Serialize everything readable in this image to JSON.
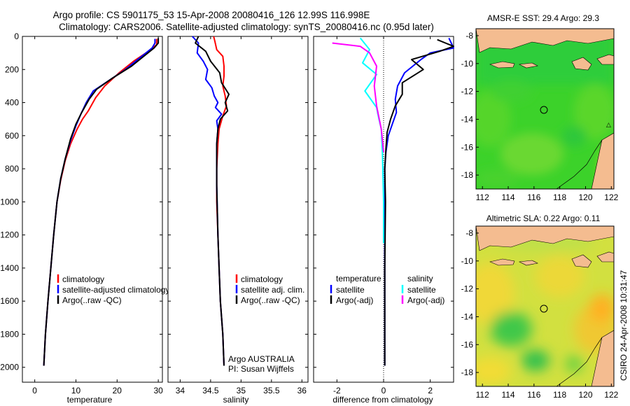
{
  "title_line1": "Argo profile: CS 5901175_53 15-Apr-2008 20080416_126 12.99S 116.998E",
  "title_line2": "Climatology: CARS2006. Satellite-adjusted climatology: synTS_20080416.nc (0.95d later)",
  "side_note": "CSIRO 24-Apr-2008 10:31:47",
  "colors": {
    "climatology": "#ff0000",
    "satellite": "#0000ff",
    "argo": "#000000",
    "salinity_sat": "#00ffff",
    "salinity_argo": "#ff00ff",
    "land": "#f4bc90"
  },
  "depth_ticks": [
    "0",
    "200",
    "400",
    "600",
    "800",
    "1000",
    "1200",
    "1400",
    "1600",
    "1800",
    "2000"
  ],
  "chart_data": [
    {
      "type": "line",
      "id": "temperature",
      "xlabel": "temperature",
      "xlim": [
        -3,
        31
      ],
      "ylim": [
        2090,
        0
      ],
      "xticks": [
        0,
        10,
        20,
        30
      ],
      "xtick_labels": [
        "0",
        "10",
        "20",
        "30"
      ],
      "legend": [
        "climatology",
        "satellite-adjusted climatology",
        "Argo(..raw -QC)"
      ],
      "series": [
        {
          "name": "climatology",
          "color": "#ff0000",
          "x": [
            29.6,
            29.6,
            28.2,
            24,
            20.5,
            17,
            14.8,
            13,
            11.6,
            10.3,
            8.7,
            7.4,
            6.3,
            5.4,
            4.6,
            3.9,
            3.2,
            2.6,
            2.2
          ],
          "y": [
            15,
            50,
            80,
            150,
            220,
            300,
            370,
            450,
            500,
            560,
            650,
            750,
            870,
            1000,
            1200,
            1400,
            1600,
            1800,
            1990
          ]
        },
        {
          "name": "satellite-adjusted climatology",
          "color": "#0000ff",
          "x": [
            29.2,
            29.2,
            28.5,
            22,
            17.8,
            14.2,
            12.5,
            11.2,
            10,
            8.7,
            7.4,
            6.3,
            5.4,
            4.6,
            3.9,
            3.2,
            2.6,
            2.2
          ],
          "y": [
            15,
            40,
            70,
            200,
            270,
            330,
            400,
            470,
            540,
            630,
            740,
            860,
            1000,
            1200,
            1400,
            1600,
            1800,
            1990
          ]
        },
        {
          "name": "Argo(..raw -QC)",
          "color": "#000000",
          "x": [
            30,
            30,
            29,
            23.5,
            19,
            15,
            13.2,
            11.4,
            10,
            8.7,
            7.4,
            6.3,
            5.4,
            4.6,
            3.9,
            3.2,
            2.6,
            2.2
          ],
          "y": [
            10,
            40,
            70,
            180,
            250,
            320,
            380,
            460,
            530,
            620,
            740,
            860,
            1000,
            1200,
            1400,
            1600,
            1800,
            1990
          ]
        }
      ]
    },
    {
      "type": "line",
      "id": "salinity",
      "xlabel": "salinity",
      "xlim": [
        33.8,
        36.1
      ],
      "ylim": [
        2090,
        0
      ],
      "xticks": [
        34,
        34.5,
        35,
        35.5,
        36
      ],
      "xtick_labels": [
        "34",
        "34.5",
        "35",
        "35.5",
        "36"
      ],
      "legend": [
        "climatology",
        "satellite adj. clim.",
        "Argo(..raw -QC)"
      ],
      "annotation": [
        "Argo AUSTRALIA",
        "PI: Susan Wijffels"
      ],
      "series": [
        {
          "name": "climatology",
          "color": "#ff0000",
          "x": [
            34.55,
            34.57,
            34.6,
            34.7,
            34.72,
            34.72,
            34.7,
            34.74,
            34.76,
            34.7,
            34.64,
            34.62,
            34.6,
            34.6,
            34.62,
            34.64,
            34.66,
            34.7,
            34.72
          ],
          "y": [
            0,
            30,
            80,
            120,
            180,
            240,
            300,
            360,
            420,
            480,
            560,
            650,
            800,
            1000,
            1200,
            1400,
            1600,
            1800,
            1990
          ]
        },
        {
          "name": "satellite adj. clim.",
          "color": "#0000ff",
          "x": [
            34.2,
            34.3,
            34.28,
            34.38,
            34.45,
            34.42,
            34.52,
            34.56,
            34.62,
            34.58,
            34.68,
            34.6,
            34.62,
            34.6,
            34.6,
            34.62,
            34.64,
            34.66,
            34.7,
            34.72
          ],
          "y": [
            0,
            40,
            100,
            150,
            200,
            260,
            310,
            360,
            400,
            430,
            470,
            510,
            560,
            650,
            900,
            1200,
            1400,
            1600,
            1800,
            1990
          ]
        },
        {
          "name": "Argo(..raw -QC)",
          "color": "#000000",
          "x": [
            34.3,
            34.25,
            34.42,
            34.5,
            34.65,
            34.68,
            34.8,
            34.74,
            34.78,
            34.66,
            34.62,
            34.6,
            34.6,
            34.62,
            34.64,
            34.66,
            34.7,
            34.72
          ],
          "y": [
            0,
            40,
            90,
            150,
            220,
            280,
            350,
            400,
            450,
            500,
            560,
            650,
            900,
            1200,
            1400,
            1600,
            1800,
            1990
          ]
        }
      ]
    },
    {
      "type": "line",
      "id": "difference",
      "xlabel": "difference from climatology",
      "xlim": [
        -3,
        3
      ],
      "ylim": [
        2090,
        0
      ],
      "xticks": [
        -2,
        0,
        2
      ],
      "xtick_labels": [
        "-2",
        "0",
        "2"
      ],
      "legend_temperature_title": "temperature",
      "legend_temperature": [
        "satellite",
        "Argo(-adj)"
      ],
      "legend_salinity_title": "salinity",
      "legend_salinity": [
        "satellite",
        "Argo(-adj)"
      ],
      "series": [
        {
          "name": "temperature satellite",
          "color": "#0000ff",
          "x": [
            2.8,
            3.0,
            2.0,
            1.6,
            0.9,
            0.6,
            0.5,
            0.55,
            0.4,
            0.2,
            0.1,
            0.05,
            0.05,
            0.05,
            0.05,
            0.05
          ],
          "y": [
            10,
            70,
            100,
            140,
            220,
            300,
            380,
            460,
            520,
            600,
            700,
            800,
            1000,
            1400,
            1800,
            1990
          ]
        },
        {
          "name": "temperature Argo(-adj)",
          "color": "#000000",
          "x": [
            2.3,
            3.0,
            2.4,
            1.2,
            1.7,
            0.8,
            0.8,
            0.5,
            0.3,
            0.15,
            0.1,
            0.05,
            0.08,
            0.05,
            0.05,
            0.05
          ],
          "y": [
            20,
            60,
            90,
            140,
            200,
            280,
            350,
            420,
            500,
            580,
            680,
            800,
            1000,
            1400,
            1800,
            1990
          ]
        },
        {
          "name": "salinity satellite",
          "color": "#00ffff",
          "x": [
            -1.0,
            -0.6,
            -0.9,
            -0.3,
            -0.8,
            -0.3,
            -0.2,
            -0.1,
            -0.05,
            0.0,
            0.0
          ],
          "y": [
            10,
            80,
            160,
            230,
            330,
            430,
            500,
            560,
            700,
            1000,
            1250
          ]
        },
        {
          "name": "salinity Argo(-adj)",
          "color": "#ff00ff",
          "x": [
            -2.2,
            -1.0,
            -0.6,
            -0.3,
            -0.4,
            -0.3,
            -0.1,
            0.0
          ],
          "y": [
            40,
            60,
            100,
            180,
            300,
            420,
            560,
            700
          ]
        }
      ]
    },
    {
      "type": "heatmap",
      "id": "sst_map",
      "title": "AMSR-E SST: 29.4  Argo: 29.3",
      "xlim": [
        111.5,
        122.2
      ],
      "ylim": [
        -19,
        -7.5
      ],
      "xtick_labels": [
        "112",
        "114",
        "116",
        "118",
        "120",
        "122"
      ],
      "ytick_labels": [
        "-8",
        "-10",
        "-12",
        "-14",
        "-16",
        "-18"
      ],
      "float_position": {
        "lon": 116.998,
        "lat": -12.99
      }
    },
    {
      "type": "heatmap",
      "id": "sla_map",
      "title": "Altimetric SLA: 0.22  Argo: 0.11",
      "xlim": [
        111.5,
        122.2
      ],
      "ylim": [
        -19,
        -7.5
      ],
      "xtick_labels": [
        "112",
        "114",
        "116",
        "118",
        "120",
        "122"
      ],
      "ytick_labels": [
        "-8",
        "-10",
        "-12",
        "-14",
        "-16",
        "-18"
      ],
      "float_position": {
        "lon": 116.998,
        "lat": -12.99
      }
    }
  ]
}
